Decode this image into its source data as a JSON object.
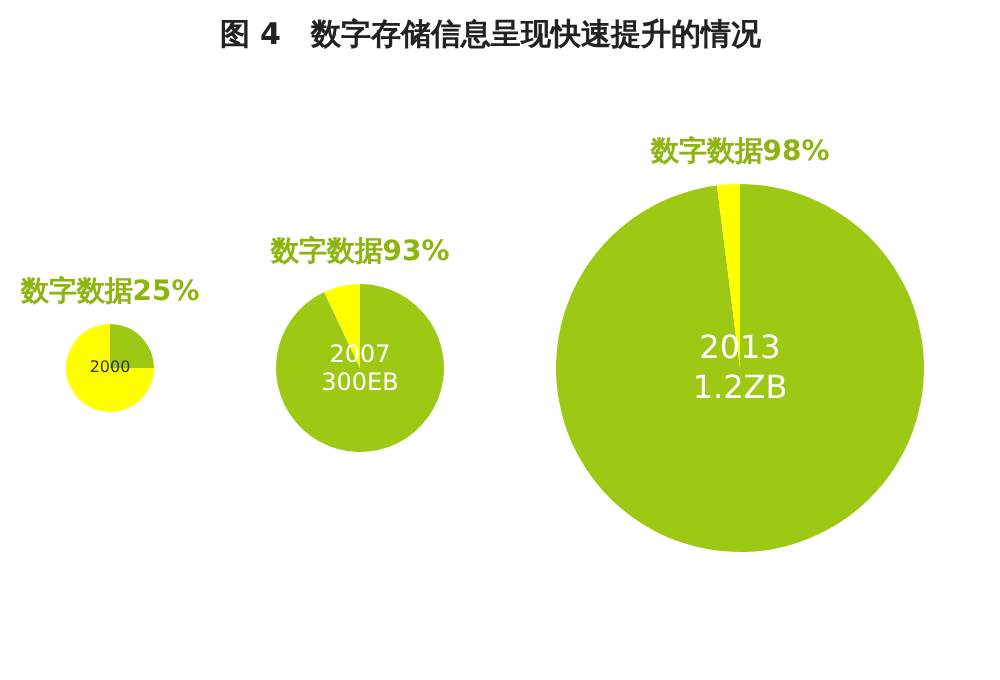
{
  "chart_data": [
    {
      "type": "pie",
      "title": "图 4　数字存储信息呈现快速提升的情况",
      "categories": [
        null,
        null
      ],
      "values": [
        25,
        75
      ],
      "colors": [
        "#9dc814",
        "#ffff00"
      ],
      "annotations": [
        "数字数据25%",
        "2000"
      ]
    },
    {
      "type": "pie",
      "categories": [
        null,
        null
      ],
      "values": [
        93,
        7
      ],
      "colors": [
        "#9dc814",
        "#ffff00"
      ],
      "annotations": [
        "数字数据93%",
        "2007",
        "300EB"
      ]
    },
    {
      "type": "pie",
      "categories": [
        null,
        null
      ],
      "values": [
        98,
        2
      ],
      "colors": [
        "#9dc814",
        "#ffff00"
      ],
      "annotations": [
        "数字数据98%",
        "2013",
        "1.2ZB"
      ]
    }
  ]
}
